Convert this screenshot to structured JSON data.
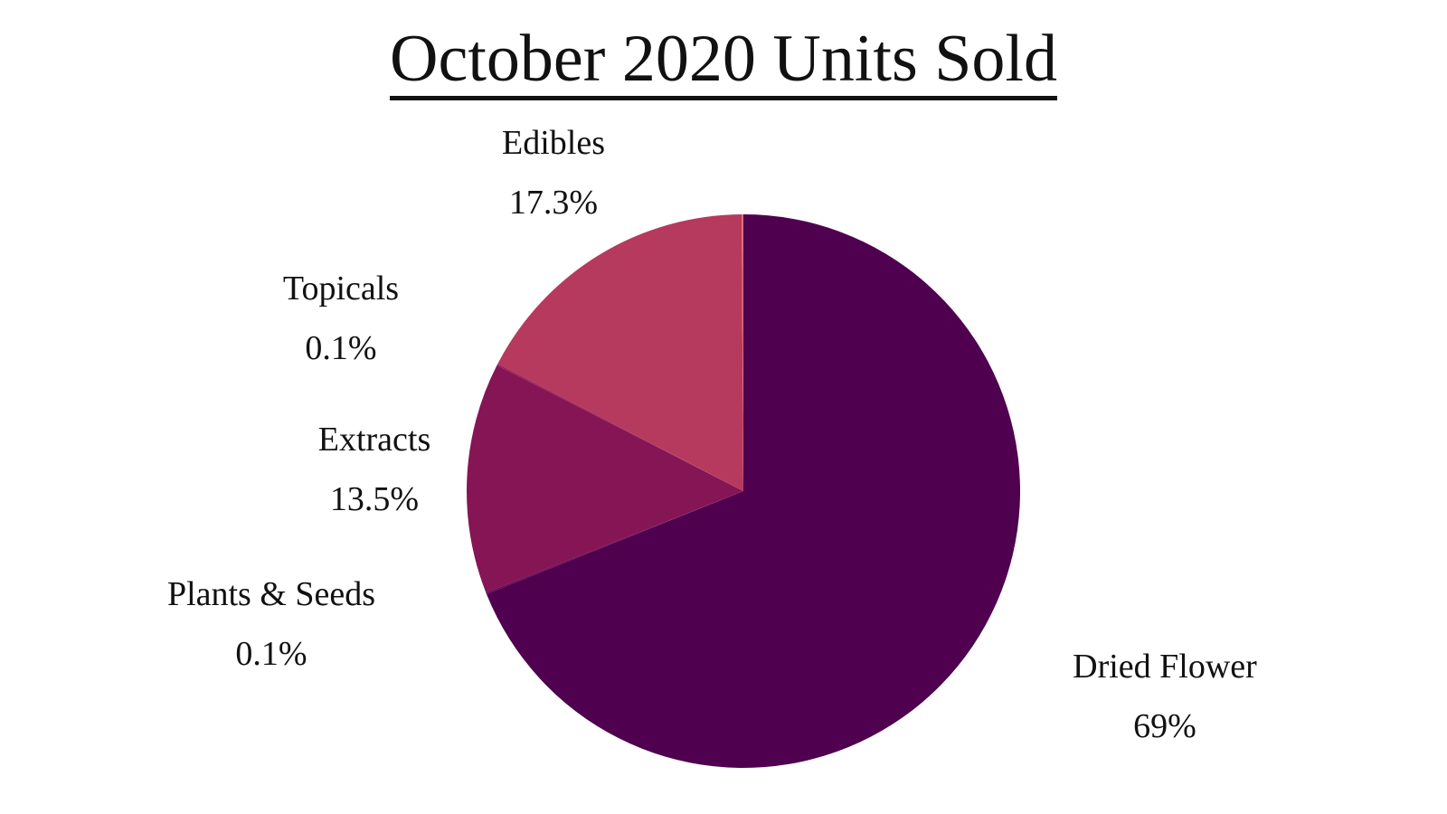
{
  "chart_data": {
    "type": "pie",
    "title": "October 2020 Units Sold",
    "start_angle_deg": 0,
    "direction": "clockwise",
    "slices": [
      {
        "label": "Dried Flower",
        "value": 69.0,
        "display": "69%",
        "color": "#4f004f"
      },
      {
        "label": "Plants & Seeds",
        "value": 0.1,
        "display": "0.1%",
        "color": "#6a0a55"
      },
      {
        "label": "Extracts",
        "value": 13.5,
        "display": "13.5%",
        "color": "#851555"
      },
      {
        "label": "Topicals",
        "value": 0.1,
        "display": "0.1%",
        "color": "#9c2358"
      },
      {
        "label": "Edibles",
        "value": 17.3,
        "display": "17.3%",
        "color": "#b53a5e"
      },
      {
        "label": "",
        "value": 0.1,
        "display": "",
        "color": "#e06a78"
      }
    ],
    "legend": "none (labels placed outside slices)"
  },
  "labels": {
    "edibles": {
      "name": "Edibles",
      "pct": "17.3%"
    },
    "topicals": {
      "name": "Topicals",
      "pct": "0.1%"
    },
    "extracts": {
      "name": "Extracts",
      "pct": "13.5%"
    },
    "plants_seeds": {
      "name": "Plants & Seeds",
      "pct": "0.1%"
    },
    "dried_flower": {
      "name": "Dried Flower",
      "pct": "69%"
    }
  }
}
